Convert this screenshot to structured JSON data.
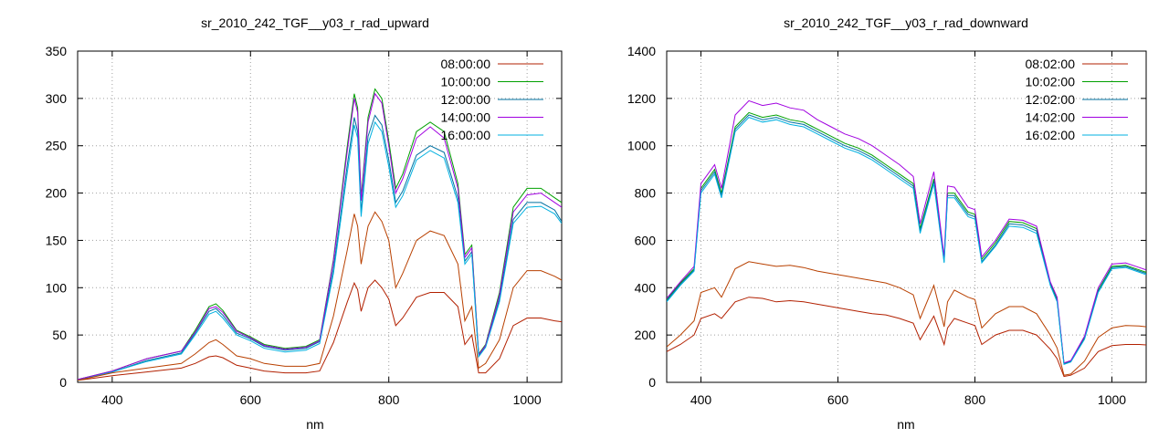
{
  "chart_data": [
    {
      "type": "line",
      "title": "sr_2010_242_TGF__y03_r_rad_upward",
      "xlabel": "nm",
      "ylabel": "",
      "xlim": [
        350,
        1050
      ],
      "ylim": [
        0,
        350
      ],
      "xticks": [
        400,
        600,
        800,
        1000
      ],
      "yticks": [
        0,
        50,
        100,
        150,
        200,
        250,
        300,
        350
      ],
      "grid": true,
      "legend_position": "top-right",
      "x": [
        350,
        400,
        450,
        500,
        520,
        540,
        550,
        560,
        580,
        600,
        620,
        650,
        680,
        700,
        720,
        740,
        750,
        755,
        760,
        770,
        780,
        790,
        800,
        810,
        820,
        840,
        860,
        880,
        900,
        910,
        920,
        930,
        940,
        960,
        980,
        1000,
        1020,
        1040,
        1050
      ],
      "series": [
        {
          "name": "08:00:00",
          "color": "#b22000",
          "values": [
            2,
            7,
            11,
            15,
            20,
            27,
            28,
            26,
            18,
            15,
            12,
            10,
            10,
            12,
            42,
            85,
            105,
            98,
            75,
            100,
            108,
            100,
            88,
            60,
            68,
            90,
            95,
            95,
            80,
            40,
            50,
            10,
            10,
            25,
            60,
            68,
            68,
            65,
            64
          ]
        },
        {
          "name": "10:00:00",
          "color": "#00a000",
          "values": [
            3,
            12,
            25,
            33,
            55,
            80,
            83,
            76,
            55,
            48,
            40,
            36,
            38,
            45,
            130,
            250,
            305,
            290,
            195,
            280,
            310,
            300,
            255,
            205,
            220,
            265,
            275,
            265,
            210,
            135,
            145,
            30,
            40,
            95,
            185,
            205,
            205,
            195,
            190
          ]
        },
        {
          "name": "12:00:00",
          "color": "#0070a0",
          "values": [
            3,
            11,
            23,
            31,
            52,
            75,
            78,
            71,
            52,
            46,
            38,
            34,
            36,
            43,
            120,
            230,
            280,
            265,
            180,
            260,
            282,
            272,
            235,
            190,
            202,
            240,
            250,
            243,
            195,
            128,
            138,
            28,
            38,
            88,
            172,
            190,
            190,
            182,
            170
          ]
        },
        {
          "name": "14:00:00",
          "color": "#a000e0",
          "values": [
            3,
            12,
            25,
            33,
            53,
            78,
            80,
            74,
            54,
            47,
            39,
            35,
            37,
            44,
            128,
            245,
            300,
            285,
            192,
            275,
            305,
            295,
            250,
            200,
            215,
            258,
            270,
            258,
            205,
            132,
            142,
            29,
            39,
            92,
            180,
            198,
            200,
            190,
            185
          ]
        },
        {
          "name": "16:00:00",
          "color": "#00b0e0",
          "values": [
            2,
            11,
            22,
            30,
            50,
            72,
            75,
            68,
            50,
            44,
            36,
            32,
            34,
            41,
            115,
            222,
            272,
            258,
            175,
            252,
            275,
            265,
            228,
            185,
            197,
            235,
            245,
            237,
            190,
            125,
            135,
            27,
            37,
            85,
            168,
            185,
            186,
            178,
            168
          ]
        },
        {
          "name": "",
          "color": "#b84000",
          "values": [
            2,
            10,
            15,
            20,
            30,
            42,
            45,
            40,
            28,
            25,
            20,
            17,
            17,
            20,
            70,
            140,
            178,
            165,
            125,
            165,
            180,
            170,
            150,
            100,
            115,
            150,
            160,
            155,
            125,
            65,
            80,
            15,
            20,
            45,
            100,
            118,
            118,
            112,
            108
          ]
        }
      ]
    },
    {
      "type": "line",
      "title": "sr_2010_242_TGF__y03_r_rad_downward",
      "xlabel": "nm",
      "ylabel": "",
      "xlim": [
        350,
        1050
      ],
      "ylim": [
        0,
        1400
      ],
      "xticks": [
        400,
        600,
        800,
        1000
      ],
      "yticks": [
        0,
        200,
        400,
        600,
        800,
        1000,
        1200,
        1400
      ],
      "grid": true,
      "legend_position": "top-right",
      "x": [
        350,
        370,
        390,
        400,
        420,
        430,
        450,
        470,
        490,
        510,
        530,
        550,
        570,
        590,
        610,
        630,
        650,
        670,
        690,
        710,
        720,
        740,
        755,
        760,
        770,
        790,
        800,
        810,
        830,
        850,
        870,
        890,
        910,
        920,
        930,
        940,
        960,
        980,
        1000,
        1020,
        1040,
        1050
      ],
      "series": [
        {
          "name": "08:02:00",
          "color": "#b22000",
          "values": [
            130,
            160,
            200,
            270,
            290,
            270,
            340,
            360,
            355,
            340,
            345,
            340,
            330,
            320,
            310,
            300,
            290,
            285,
            270,
            250,
            180,
            280,
            160,
            230,
            270,
            250,
            240,
            160,
            200,
            220,
            220,
            200,
            140,
            100,
            25,
            30,
            60,
            130,
            155,
            160,
            160,
            158
          ]
        },
        {
          "name": "10:02:00",
          "color": "#00a000",
          "values": [
            350,
            420,
            480,
            820,
            900,
            800,
            1080,
            1140,
            1120,
            1130,
            1110,
            1100,
            1070,
            1040,
            1010,
            990,
            960,
            920,
            880,
            840,
            650,
            860,
            520,
            800,
            800,
            720,
            710,
            520,
            590,
            680,
            675,
            650,
            420,
            350,
            80,
            90,
            190,
            390,
            490,
            495,
            475,
            465
          ]
        },
        {
          "name": "12:02:00",
          "color": "#0070a0",
          "values": [
            345,
            415,
            475,
            810,
            890,
            790,
            1070,
            1130,
            1110,
            1120,
            1100,
            1090,
            1060,
            1030,
            1000,
            980,
            950,
            910,
            870,
            830,
            640,
            850,
            510,
            790,
            790,
            710,
            700,
            510,
            580,
            670,
            665,
            640,
            415,
            345,
            78,
            88,
            185,
            385,
            485,
            490,
            470,
            460
          ]
        },
        {
          "name": "14:02:00",
          "color": "#a000e0",
          "values": [
            355,
            425,
            490,
            840,
            920,
            820,
            1130,
            1190,
            1170,
            1180,
            1160,
            1150,
            1110,
            1080,
            1050,
            1030,
            1000,
            960,
            920,
            870,
            670,
            890,
            530,
            830,
            825,
            740,
            730,
            530,
            600,
            690,
            685,
            660,
            425,
            360,
            82,
            92,
            195,
            400,
            500,
            505,
            485,
            475
          ]
        },
        {
          "name": "16:02:00",
          "color": "#00b0e0",
          "values": [
            340,
            410,
            470,
            800,
            880,
            780,
            1060,
            1120,
            1100,
            1110,
            1090,
            1080,
            1050,
            1020,
            990,
            970,
            940,
            900,
            860,
            820,
            630,
            840,
            505,
            780,
            780,
            700,
            690,
            505,
            575,
            660,
            655,
            630,
            410,
            340,
            76,
            86,
            182,
            380,
            480,
            485,
            465,
            455
          ]
        },
        {
          "name": "",
          "color": "#b84000",
          "values": [
            150,
            200,
            260,
            380,
            400,
            360,
            480,
            510,
            500,
            490,
            495,
            485,
            470,
            460,
            450,
            440,
            430,
            420,
            400,
            370,
            270,
            410,
            235,
            340,
            390,
            360,
            350,
            230,
            290,
            320,
            320,
            290,
            200,
            145,
            30,
            35,
            90,
            190,
            230,
            240,
            238,
            235
          ]
        }
      ]
    }
  ]
}
